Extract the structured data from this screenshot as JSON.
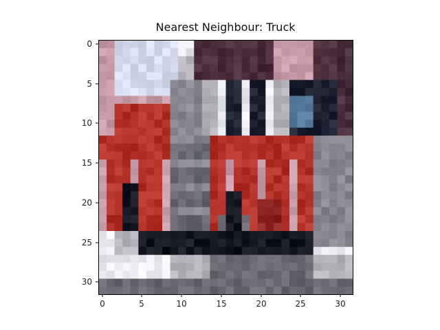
{
  "figure": {
    "title": "Nearest Neighbour: Truck",
    "image": {
      "resolution": [
        32,
        32
      ],
      "content": "pixelated low-resolution photo of a red fire truck with white stripes and dark windows"
    },
    "axes": {
      "x_ticks": [
        "0",
        "5",
        "10",
        "15",
        "20",
        "25",
        "30"
      ],
      "y_ticks": [
        "0",
        "5",
        "10",
        "15",
        "20",
        "25",
        "30"
      ]
    }
  },
  "colors": {
    "truck_red": "#b2322a",
    "truck_dark_red": "#8e2523",
    "window_dark": "#1e2233",
    "window_blue": "#5a7fa0",
    "sky_light": "#d9dff0",
    "road_white": "#e9e8ee",
    "shadow_black": "#151722",
    "gray": "#8a8690",
    "pink": "#c89aa6"
  }
}
